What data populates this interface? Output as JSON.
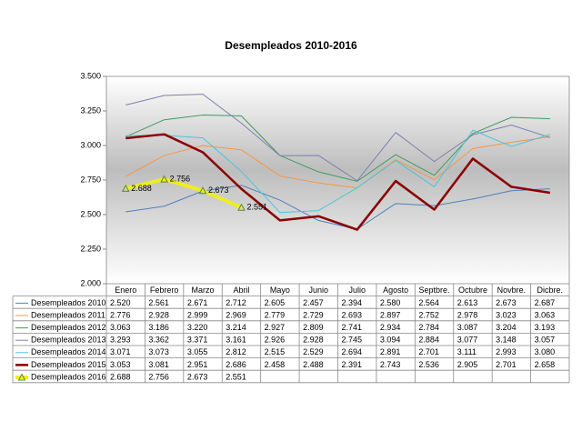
{
  "chart_data": {
    "type": "line",
    "title": "Desempleados 2010-2016",
    "categories": [
      "Enero",
      "Febrero",
      "Marzo",
      "Abril",
      "Mayo",
      "Junio",
      "Julio",
      "Agosto",
      "Septbre.",
      "Octubre",
      "Novbre.",
      "Dicbre."
    ],
    "ylim": [
      2000,
      3500
    ],
    "yticks": [
      {
        "value": 2000,
        "label": "2.000"
      },
      {
        "value": 2250,
        "label": "2.250"
      },
      {
        "value": 2500,
        "label": "2.500"
      },
      {
        "value": 2750,
        "label": "2.750"
      },
      {
        "value": 3000,
        "label": "3.000"
      },
      {
        "value": 3250,
        "label": "3.250"
      },
      {
        "value": 3500,
        "label": "3.500"
      }
    ],
    "series": [
      {
        "name": "Desempleados 2010",
        "color": "#4f81bd",
        "width": 1,
        "values": [
          2520,
          2561,
          2671,
          2712,
          2605,
          2457,
          2394,
          2580,
          2564,
          2613,
          2673,
          2687
        ],
        "value_labels": [
          "2.520",
          "2.561",
          "2.671",
          "2.712",
          "2.605",
          "2.457",
          "2.394",
          "2.580",
          "2.564",
          "2.613",
          "2.673",
          "2.687"
        ]
      },
      {
        "name": "Desempleados 2011",
        "color": "#f79646",
        "width": 1,
        "values": [
          2776,
          2928,
          2999,
          2969,
          2779,
          2729,
          2693,
          2897,
          2752,
          2978,
          3023,
          3063
        ],
        "value_labels": [
          "2.776",
          "2.928",
          "2.999",
          "2.969",
          "2.779",
          "2.729",
          "2.693",
          "2.897",
          "2.752",
          "2.978",
          "3.023",
          "3.063"
        ]
      },
      {
        "name": "Desempleados 2012",
        "color": "#3f9c5c",
        "width": 1,
        "values": [
          3063,
          3186,
          3220,
          3214,
          2927,
          2809,
          2741,
          2934,
          2784,
          3087,
          3204,
          3193
        ],
        "value_labels": [
          "3.063",
          "3.186",
          "3.220",
          "3.214",
          "2.927",
          "2.809",
          "2.741",
          "2.934",
          "2.784",
          "3.087",
          "3.204",
          "3.193"
        ]
      },
      {
        "name": "Desempleados 2013",
        "color": "#7f7fb0",
        "width": 1,
        "values": [
          3293,
          3362,
          3371,
          3161,
          2926,
          2928,
          2745,
          3094,
          2884,
          3077,
          3148,
          3057
        ],
        "value_labels": [
          "3.293",
          "3.362",
          "3.371",
          "3.161",
          "2.926",
          "2.928",
          "2.745",
          "3.094",
          "2.884",
          "3.077",
          "3.148",
          "3.057"
        ]
      },
      {
        "name": "Desempleados 2014",
        "color": "#4bc6d6",
        "width": 1,
        "values": [
          3071,
          3073,
          3055,
          2812,
          2515,
          2529,
          2694,
          2891,
          2701,
          3111,
          2993,
          3080
        ],
        "value_labels": [
          "3.071",
          "3.073",
          "3.055",
          "2.812",
          "2.515",
          "2.529",
          "2.694",
          "2.891",
          "2.701",
          "3.111",
          "2.993",
          "3.080"
        ]
      },
      {
        "name": "Desempleados 2015",
        "color": "#8b0000",
        "width": 2.5,
        "values": [
          3053,
          3081,
          2951,
          2686,
          2458,
          2488,
          2391,
          2743,
          2536,
          2905,
          2701,
          2658
        ],
        "value_labels": [
          "3.053",
          "3.081",
          "2.951",
          "2.686",
          "2.458",
          "2.488",
          "2.391",
          "2.743",
          "2.536",
          "2.905",
          "2.701",
          "2.658"
        ]
      },
      {
        "name": "Desempleados 2016",
        "color": "#eeee22",
        "width": 4,
        "marker": "triangle",
        "data_labels": true,
        "values": [
          2688,
          2756,
          2673,
          2551,
          null,
          null,
          null,
          null,
          null,
          null,
          null,
          null
        ],
        "value_labels": [
          "2.688",
          "2.756",
          "2.673",
          "2.551",
          null,
          null,
          null,
          null,
          null,
          null,
          null,
          null
        ]
      }
    ]
  }
}
